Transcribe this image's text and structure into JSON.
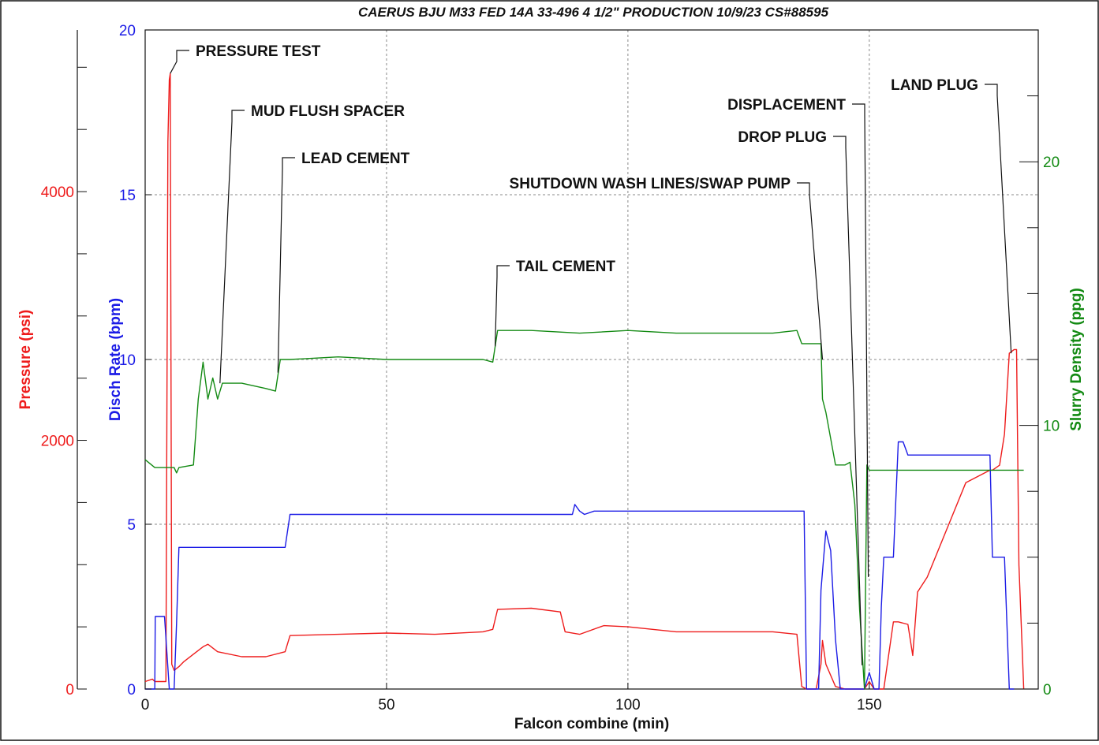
{
  "chart_data": {
    "type": "line",
    "title": "CAERUS BJU M33 FED 14A 33-496 4 1/2\" PRODUCTION 10/9/23 CS#88595",
    "xlabel": "Falcon combine (min)",
    "xlim": [
      0,
      185
    ],
    "x_ticks": [
      "0",
      "50",
      "100",
      "150"
    ],
    "grid": "dashed at x = 50, 100, 150 and rate = 5, 10, 15",
    "colors": {
      "pressure": "#ee1c1c",
      "rate": "#1c1ce6",
      "density": "#138a13",
      "axis": "#111111",
      "grid": "#8a8a8a"
    },
    "axes": {
      "pressure": {
        "label": "Pressure (psi)",
        "ylim": [
          0,
          5300
        ],
        "ticks": [
          "0",
          "2000",
          "4000"
        ],
        "side": "far-left"
      },
      "rate": {
        "label": "Disch Rate (bpm)",
        "ylim": [
          0,
          20
        ],
        "ticks": [
          "0",
          "5",
          "10",
          "15",
          "20"
        ],
        "side": "left"
      },
      "density": {
        "label": "Slurry Density (ppg)",
        "ylim": [
          0,
          25
        ],
        "ticks": [
          "0",
          "10",
          "20"
        ],
        "side": "right"
      }
    },
    "series": [
      {
        "name": "Pressure (psi)",
        "axis": "pressure",
        "x": [
          0,
          1.5,
          2,
          3,
          4.3,
          4.7,
          5,
          5.2,
          5.5,
          6,
          7,
          8,
          10,
          12,
          13,
          15,
          20,
          25,
          29,
          30,
          40,
          50,
          60,
          70,
          72,
          73,
          80,
          86,
          87,
          90,
          95,
          100,
          110,
          120,
          130,
          135,
          136,
          137,
          139,
          140,
          140.3,
          141,
          143,
          145,
          147,
          149,
          150,
          151,
          152,
          153,
          155,
          156,
          158,
          159,
          160,
          162,
          170,
          175,
          175.5,
          177,
          178,
          179,
          180,
          180.5,
          181,
          182
        ],
        "y": [
          60,
          80,
          60,
          60,
          60,
          4400,
          4900,
          4950,
          200,
          150,
          180,
          220,
          280,
          340,
          360,
          300,
          260,
          260,
          300,
          430,
          440,
          450,
          440,
          460,
          480,
          640,
          650,
          620,
          460,
          440,
          510,
          500,
          460,
          460,
          460,
          440,
          20,
          0,
          0,
          200,
          390,
          200,
          20,
          0,
          0,
          0,
          60,
          0,
          0,
          0,
          540,
          540,
          520,
          270,
          780,
          900,
          1660,
          1760,
          1760,
          1800,
          2050,
          2700,
          2730,
          2730,
          1000,
          0
        ]
      },
      {
        "name": "Disch Rate (bpm)",
        "axis": "rate",
        "x": [
          0,
          2,
          2.1,
          4,
          5,
          6,
          6.5,
          7,
          20,
          29,
          30,
          60,
          88.5,
          89,
          90,
          91,
          93,
          95,
          96,
          110,
          115,
          120,
          126,
          127,
          129,
          130,
          136.5,
          137,
          139.5,
          140,
          141,
          142,
          143,
          144,
          145,
          147,
          149,
          150,
          151,
          152,
          152.5,
          153,
          155,
          156,
          157,
          158,
          160,
          170,
          175,
          175.5,
          176,
          178,
          179,
          180
        ],
        "y": [
          0,
          0,
          2.2,
          2.2,
          0,
          0,
          2.0,
          4.3,
          4.3,
          4.3,
          5.3,
          5.3,
          5.3,
          5.6,
          5.4,
          5.3,
          5.4,
          5.4,
          5.4,
          5.4,
          5.4,
          5.4,
          5.4,
          5.4,
          5.4,
          5.4,
          5.4,
          0,
          0,
          3.0,
          4.8,
          4.2,
          1.5,
          0,
          0,
          0,
          0,
          0.5,
          0,
          0,
          2.5,
          4.0,
          4.0,
          7.5,
          7.5,
          7.1,
          7.1,
          7.1,
          7.1,
          4.0,
          4.0,
          4.0,
          0,
          0
        ]
      },
      {
        "name": "Slurry Density (ppg)",
        "axis": "density",
        "x": [
          0,
          2,
          6,
          6.5,
          7,
          10,
          11,
          12,
          13,
          14,
          15,
          16,
          20,
          25,
          27,
          28,
          30,
          40,
          50,
          60,
          70,
          72,
          73,
          80,
          90,
          100,
          110,
          120,
          130,
          135,
          136,
          140,
          140.3,
          141,
          142,
          143,
          144,
          145,
          146,
          147,
          148,
          149,
          149.5,
          150,
          152,
          160,
          170,
          180,
          182
        ],
        "y": [
          8.7,
          8.4,
          8.4,
          8.2,
          8.4,
          8.5,
          11.0,
          12.4,
          11.0,
          11.8,
          11.0,
          11.6,
          11.6,
          11.4,
          11.3,
          12.5,
          12.5,
          12.6,
          12.5,
          12.5,
          12.5,
          12.4,
          13.6,
          13.6,
          13.5,
          13.6,
          13.5,
          13.5,
          13.5,
          13.6,
          13.1,
          13.1,
          11.0,
          10.5,
          9.5,
          8.5,
          8.5,
          8.5,
          8.6,
          7.0,
          3.0,
          0,
          8.5,
          8.3,
          8.3,
          8.3,
          8.3,
          8.3,
          8.3
        ]
      }
    ],
    "annotations": [
      {
        "label": "PRESSURE TEST",
        "x": 5.2,
        "axis": "pressure",
        "y": 4950
      },
      {
        "label": "MUD FLUSH SPACER",
        "x": 15.5,
        "axis": "density",
        "y": 11.6
      },
      {
        "label": "LEAD CEMENT",
        "x": 27.5,
        "axis": "density",
        "y": 12.0
      },
      {
        "label": "TAIL CEMENT",
        "x": 72.5,
        "axis": "density",
        "y": 13.0
      },
      {
        "label": "SHUTDOWN WASH LINES/SWAP PUMP",
        "x": 140.3,
        "axis": "density",
        "y": 12.5
      },
      {
        "label": "DISPLACEMENT",
        "x": 149.8,
        "axis": "rate",
        "y": 3.4
      },
      {
        "label": "DROP PLUG",
        "x": 148.5,
        "axis": "density",
        "y": 0.9
      },
      {
        "label": "LAND PLUG",
        "x": 179.4,
        "axis": "pressure",
        "y": 2700
      }
    ]
  }
}
